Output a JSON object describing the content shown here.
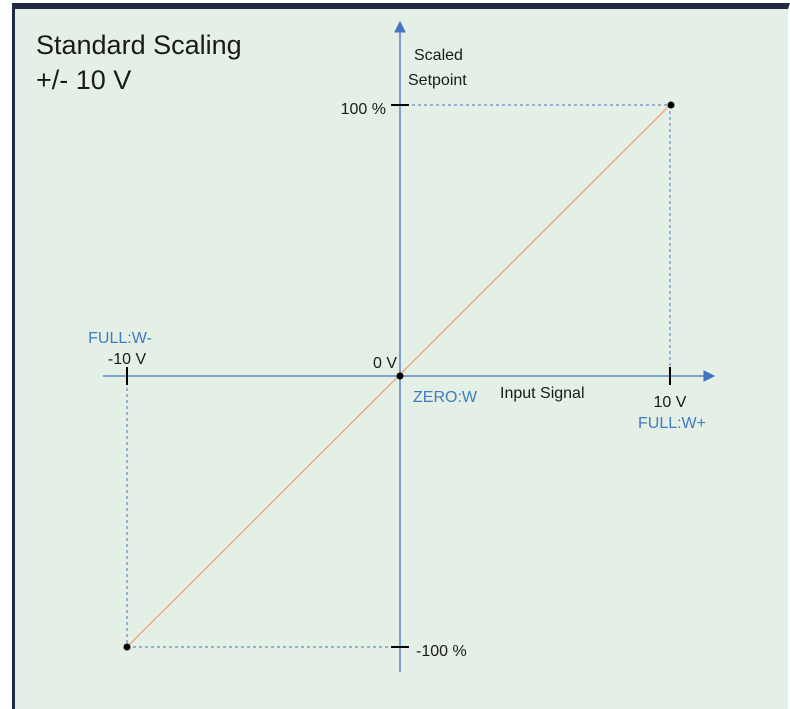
{
  "title": {
    "line1": "Standard Scaling",
    "line2": "+/- 10 V"
  },
  "axes": {
    "y_label_line1": "Scaled",
    "y_label_line2": "Setpoint",
    "x_label": "Input Signal"
  },
  "ticks": {
    "y_top": "100 %",
    "y_bottom": "-100 %",
    "origin": "0 V",
    "x_left": "-10 V",
    "x_right": "10 V"
  },
  "markers": {
    "full_w_minus": "FULL:W-",
    "zero_w": "ZERO:W",
    "full_w_plus": "FULL:W+"
  },
  "colors": {
    "axis": "#4472c4",
    "line": "#f0a27a",
    "guide": "#4472c4",
    "marker_text": "#3f7cc0",
    "background": "#e4efe5",
    "frame": "#1f2b44"
  }
}
